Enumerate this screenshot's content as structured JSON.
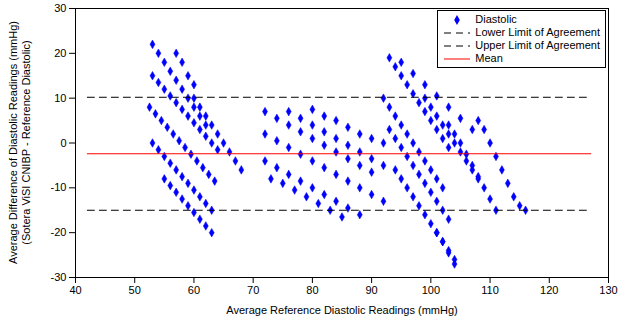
{
  "chart_data": {
    "type": "scatter",
    "x_label": "Average Reference Diastolic Readings (mmHg)",
    "y_label": "Average Difference of Diastolic Readings (mmHg)\n(Sotera ViSI CNIBP - Reference Diastolic)",
    "xlim": [
      40,
      130
    ],
    "xticks": [
      40,
      50,
      60,
      70,
      80,
      90,
      100,
      110,
      120,
      130
    ],
    "ylim": [
      -30,
      30
    ],
    "yticks": [
      -30,
      -20,
      -10,
      0,
      10,
      20,
      30
    ],
    "grid": false,
    "legend": "northeast",
    "series": [
      {
        "name": "Diastolic",
        "type": "scatter",
        "color": "#0000ff",
        "marker": "diamond",
        "x": [
          53,
          54,
          55,
          56,
          57,
          58,
          59,
          60,
          61,
          62,
          53,
          54,
          55,
          56,
          57,
          58,
          59,
          60,
          61,
          62,
          63,
          64,
          52.5,
          53.5,
          54.5,
          55.5,
          56.5,
          57.5,
          58.5,
          59.5,
          60.5,
          61.5,
          62.5,
          63.5,
          53,
          54,
          55,
          56,
          57,
          58,
          59,
          60,
          61,
          62,
          63,
          55,
          56,
          57,
          58,
          59,
          60,
          61,
          62,
          63,
          60,
          61,
          62,
          63,
          64,
          65,
          66,
          67,
          68,
          57,
          58,
          59,
          60,
          72,
          74,
          76,
          78,
          80,
          82,
          84,
          86,
          88,
          90,
          72,
          74,
          76,
          78,
          80,
          82,
          84,
          86,
          88,
          90,
          92,
          72,
          74,
          76,
          78,
          80,
          82,
          84,
          86,
          88,
          76,
          78,
          80,
          82,
          84,
          86,
          88,
          90,
          92,
          80,
          82,
          84,
          86,
          88,
          90,
          92,
          73,
          75,
          77,
          79,
          81,
          83,
          85,
          93,
          94,
          95,
          96,
          97,
          98,
          99,
          100,
          101,
          102,
          103,
          95,
          97,
          99,
          101,
          103,
          105,
          107,
          92,
          93,
          94,
          95,
          96,
          97,
          98,
          99,
          100,
          101,
          102,
          93,
          94,
          95,
          96,
          97,
          98,
          99,
          100,
          101,
          102,
          103,
          94,
          95,
          96,
          97,
          98,
          99,
          100,
          101,
          102,
          103,
          104,
          99,
          100,
          101,
          102,
          103,
          104,
          105,
          106,
          107,
          108,
          103,
          104,
          105,
          106,
          107,
          108,
          109,
          110,
          111,
          108,
          109,
          110,
          111,
          112,
          113,
          114,
          115,
          116,
          101,
          102,
          103,
          104
        ],
        "values": [
          22,
          20,
          18,
          16,
          14,
          12,
          10,
          8,
          6,
          4,
          15,
          13.5,
          12,
          10.5,
          9,
          7.5,
          6,
          4.5,
          3,
          1.5,
          0,
          -1.5,
          8,
          6.5,
          5,
          3.5,
          2,
          0.5,
          -1,
          -2.5,
          -4,
          -5.5,
          -7,
          -8.5,
          0,
          -1.5,
          -3,
          -4.5,
          -6,
          -7.5,
          -9,
          -10.5,
          -12,
          -13.5,
          -15,
          -8,
          -9.5,
          -11,
          -12.5,
          -14,
          -15.5,
          -17,
          -18.5,
          -20,
          10,
          8,
          6,
          4,
          2,
          0,
          -2,
          -4,
          -6,
          20,
          18,
          15,
          13,
          7,
          5.5,
          4,
          2.5,
          1,
          -0.5,
          -2,
          -3.5,
          -5,
          -6.5,
          2,
          0.5,
          -1,
          -2.5,
          -4,
          -5.5,
          -7,
          -8.5,
          -10,
          -11.5,
          -13,
          -4,
          -5.5,
          -7,
          -8.5,
          -10,
          -11.5,
          -13,
          -14.5,
          -16,
          7,
          5.5,
          4,
          2.5,
          1,
          -0.5,
          -2,
          -3.5,
          -5,
          7.5,
          6,
          5,
          3.5,
          2,
          1,
          0,
          -8,
          -9,
          -10.5,
          -12,
          -13.5,
          -15,
          -16.5,
          19,
          17,
          15,
          13,
          11,
          9,
          7,
          5,
          3,
          1,
          -1,
          18,
          15.5,
          13,
          10.5,
          8,
          5.5,
          3,
          10,
          8,
          6,
          4,
          2,
          0,
          -2,
          -4,
          -6,
          -8,
          -10,
          3,
          1,
          -1,
          -3,
          -5,
          -7,
          -9,
          -11,
          -13,
          -15,
          -17,
          -6,
          -8,
          -10,
          -12,
          -14,
          -16,
          -18,
          -20,
          -22,
          -24,
          -26,
          10,
          8,
          6,
          4,
          2,
          0,
          -2,
          -4,
          -6,
          -8,
          4,
          2,
          0,
          -2.5,
          -5,
          -7.5,
          -10,
          -12.5,
          -15,
          5,
          3,
          0,
          -3,
          -6,
          -9,
          -12,
          -14,
          -15,
          -20,
          -22,
          -24.5,
          -27
        ]
      },
      {
        "name": "Lower Limit of Agreement",
        "type": "line",
        "color": "#000000",
        "line_style": "dashed",
        "x": [
          42,
          127
        ],
        "values": [
          -15,
          -15
        ]
      },
      {
        "name": "Upper Limit of Agreement",
        "type": "line",
        "color": "#000000",
        "line_style": "dashed",
        "x": [
          42,
          127
        ],
        "values": [
          10.2,
          10.2
        ]
      },
      {
        "name": "Mean",
        "type": "line",
        "color": "#ff0000",
        "line_style": "solid",
        "x": [
          42,
          127
        ],
        "values": [
          -2.4,
          -2.4
        ]
      }
    ]
  }
}
